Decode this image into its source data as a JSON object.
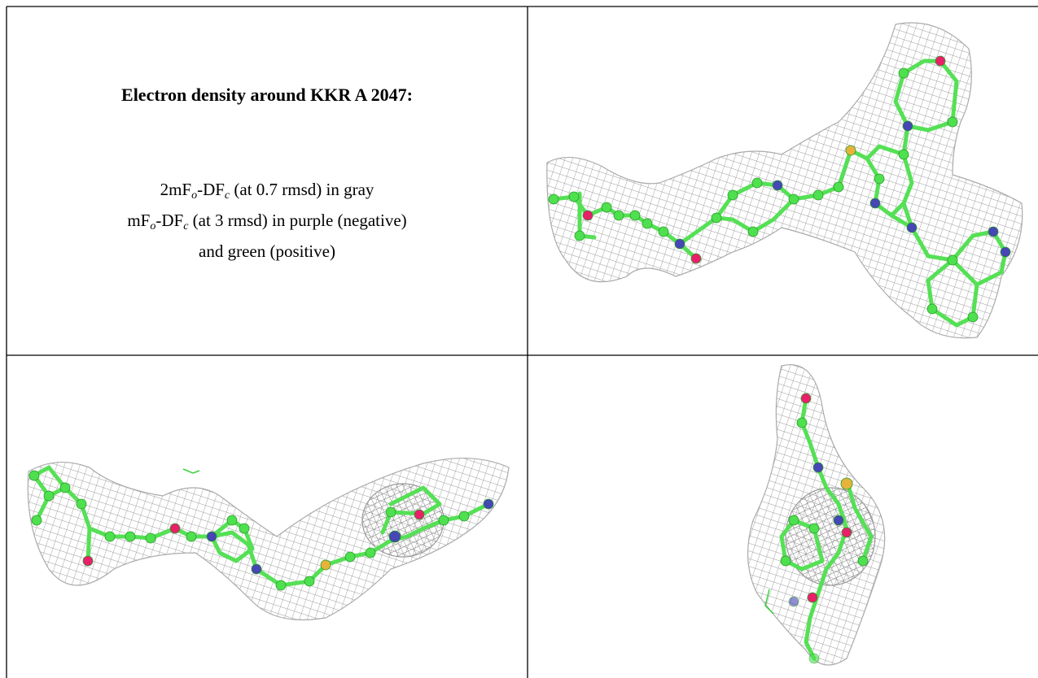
{
  "caption_cell": {
    "title": "Electron density around KKR A 2047:",
    "line1": {
      "lead": "2mF",
      "sub1": "o",
      "mid": "-DF",
      "sub2": "c",
      "tail": " (at 0.7 rmsd) in gray"
    },
    "line2": {
      "lead": "mF",
      "sub1": "o",
      "mid": "-DF",
      "sub2": "c",
      "tail": " (at 3 rmsd) in purple (negative)"
    },
    "line3": "and green (positive)"
  }
}
